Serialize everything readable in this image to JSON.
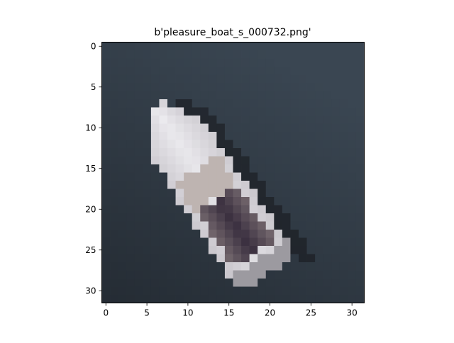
{
  "figure": {
    "title": "b'pleasure_boat_s_000732.png'",
    "x_ticks": [
      "0",
      "5",
      "10",
      "15",
      "20",
      "25",
      "30"
    ],
    "y_ticks": [
      "0",
      "5",
      "10",
      "15",
      "20",
      "25",
      "30"
    ]
  },
  "image": {
    "subject": "pleasure-boat",
    "grid_size": [
      32,
      32
    ],
    "colors": {
      "water": "#3a4652",
      "water_dark": "#1f252c",
      "hull_white": "#ecebef",
      "hull_grey": "#c9c6cc",
      "cockpit": "#3a2f3f",
      "deck_tan": "#b9aca5",
      "shadow": "#15161a"
    }
  }
}
